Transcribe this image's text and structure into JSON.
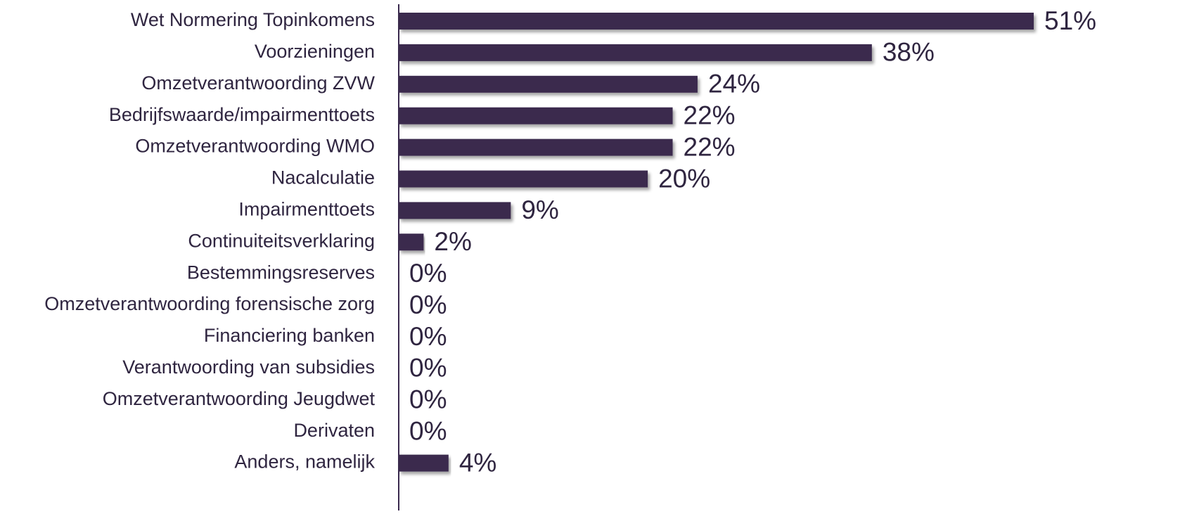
{
  "chart_data": {
    "type": "bar",
    "orientation": "horizontal",
    "categories": [
      "Wet Normering Topinkomens",
      "Voorzieningen",
      "Omzetverantwoording ZVW",
      "Bedrijfswaarde/impairmenttoets",
      "Omzetverantwoording WMO",
      "Nacalculatie",
      "Impairmenttoets",
      "Continuiteitsverklaring",
      "Bestemmingsreserves",
      "Omzetverantwoording forensische zorg",
      "Financiering banken",
      "Verantwoording van subsidies",
      "Omzetverantwoording Jeugdwet",
      "Derivaten",
      "Anders, namelijk"
    ],
    "values": [
      51,
      38,
      24,
      22,
      22,
      20,
      9,
      2,
      0,
      0,
      0,
      0,
      0,
      0,
      4
    ],
    "value_labels": [
      "51%",
      "38%",
      "24%",
      "22%",
      "22%",
      "20%",
      "9%",
      "2%",
      "0%",
      "0%",
      "0%",
      "0%",
      "0%",
      "0%",
      "4%"
    ],
    "color": "#3a2a4e"
  }
}
